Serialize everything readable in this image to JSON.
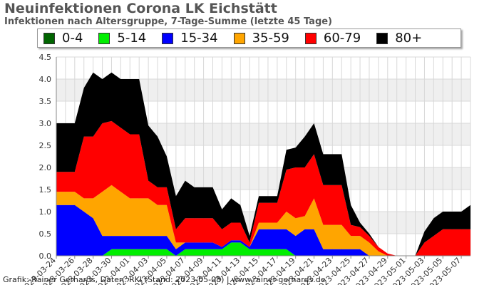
{
  "header": {
    "title": "Neuinfektionen Corona LK Eichstätt",
    "subtitle": "Infektionen nach Altersgruppe, 7-Tage-Summe (letzte 45 Tage)"
  },
  "footer": {
    "credit": "Grafik: Rainer Gerhards, Daten: RKI (Stand: 2023-05-08) | www.rainer-gerhards.de"
  },
  "chart_data": {
    "type": "area",
    "stacked": true,
    "grid": true,
    "legend_position": "top",
    "ylim": [
      0,
      4.5
    ],
    "y_ticks": [
      "0.0",
      "0.5",
      "1.0",
      "1.5",
      "2.0",
      "2.5",
      "3.0",
      "3.5",
      "4.0",
      "4.5"
    ],
    "x": [
      "2023-03-24",
      "2023-03-25",
      "2023-03-26",
      "2023-03-27",
      "2023-03-28",
      "2023-03-29",
      "2023-03-30",
      "2023-03-31",
      "2023-04-01",
      "2023-04-02",
      "2023-04-03",
      "2023-04-04",
      "2023-04-05",
      "2023-04-06",
      "2023-04-07",
      "2023-04-08",
      "2023-04-09",
      "2023-04-10",
      "2023-04-11",
      "2023-04-12",
      "2023-04-13",
      "2023-04-14",
      "2023-04-15",
      "2023-04-16",
      "2023-04-17",
      "2023-04-18",
      "2023-04-19",
      "2023-04-20",
      "2023-04-21",
      "2023-04-22",
      "2023-04-23",
      "2023-04-24",
      "2023-04-25",
      "2023-04-26",
      "2023-04-27",
      "2023-04-28",
      "2023-04-29",
      "2023-04-30",
      "2023-05-01",
      "2023-05-02",
      "2023-05-03",
      "2023-05-04",
      "2023-05-05",
      "2023-05-06",
      "2023-05-07",
      "2023-05-08"
    ],
    "x_tick_labels": [
      "2023-03-24",
      "2023-03-26",
      "2023-03-28",
      "2023-03-30",
      "2023-04-01",
      "2023-04-03",
      "2023-04-05",
      "2023-04-07",
      "2023-04-09",
      "2023-04-11",
      "2023-04-13",
      "2023-04-15",
      "2023-04-17",
      "2023-04-19",
      "2023-04-21",
      "2023-04-23",
      "2023-04-25",
      "2023-04-27",
      "2023-04-29",
      "2023-05-01",
      "2023-05-03",
      "2023-05-05",
      "2023-05-07"
    ],
    "series": [
      {
        "name": "0-4",
        "color": "#006400",
        "values": [
          0,
          0,
          0,
          0,
          0,
          0,
          0,
          0,
          0,
          0,
          0,
          0,
          0,
          0,
          0,
          0,
          0,
          0,
          0,
          0,
          0,
          0,
          0,
          0,
          0,
          0,
          0,
          0,
          0,
          0,
          0,
          0,
          0,
          0,
          0,
          0,
          0,
          0,
          0,
          0,
          0,
          0,
          0,
          0,
          0,
          0
        ]
      },
      {
        "name": "5-14",
        "color": "#00ee00",
        "values": [
          0,
          0,
          0,
          0,
          0,
          0,
          0.15,
          0.15,
          0.15,
          0.15,
          0.15,
          0.15,
          0.15,
          0,
          0.15,
          0.15,
          0.15,
          0.15,
          0.15,
          0.3,
          0.3,
          0.15,
          0.15,
          0.15,
          0.15,
          0.15,
          0,
          0,
          0,
          0,
          0,
          0,
          0,
          0,
          0,
          0,
          0,
          0,
          0,
          0,
          0,
          0,
          0,
          0,
          0,
          0
        ]
      },
      {
        "name": "15-34",
        "color": "#0000ff",
        "values": [
          1.15,
          1.15,
          1.15,
          1.0,
          0.85,
          0.45,
          0.3,
          0.3,
          0.3,
          0.3,
          0.3,
          0.3,
          0.3,
          0.15,
          0.15,
          0.15,
          0.15,
          0.15,
          0.05,
          0.05,
          0.05,
          0.05,
          0.45,
          0.45,
          0.45,
          0.45,
          0.45,
          0.6,
          0.6,
          0.15,
          0.15,
          0.15,
          0.15,
          0.15,
          0,
          0,
          0,
          0,
          0,
          0,
          0,
          0,
          0,
          0,
          0,
          0
        ]
      },
      {
        "name": "35-59",
        "color": "#ffa500",
        "values": [
          0.3,
          0.3,
          0.3,
          0.3,
          0.45,
          1.0,
          1.15,
          1.0,
          0.85,
          0.85,
          0.85,
          0.7,
          0.7,
          0.15,
          0,
          0,
          0,
          0,
          0,
          0,
          0,
          0,
          0.15,
          0.15,
          0.15,
          0.4,
          0.4,
          0.3,
          0.7,
          0.55,
          0.55,
          0.55,
          0.3,
          0.3,
          0.3,
          0.1,
          0,
          0,
          0,
          0,
          0,
          0,
          0,
          0,
          0,
          0
        ]
      },
      {
        "name": "60-79",
        "color": "#ff0000",
        "values": [
          0.45,
          0.45,
          0.45,
          1.4,
          1.4,
          1.55,
          1.45,
          1.45,
          1.45,
          1.45,
          0.4,
          0.4,
          0.4,
          0.3,
          0.55,
          0.55,
          0.55,
          0.55,
          0.4,
          0.4,
          0.4,
          0.1,
          0.45,
          0.45,
          0.45,
          0.95,
          1.15,
          1.1,
          1.0,
          0.9,
          0.9,
          0.9,
          0.25,
          0.2,
          0.15,
          0.1,
          0.05,
          0,
          0,
          0,
          0.3,
          0.45,
          0.6,
          0.6,
          0.6,
          0.6
        ]
      },
      {
        "name": "80+",
        "color": "#000000",
        "values": [
          1.1,
          1.1,
          1.1,
          1.1,
          1.45,
          1.0,
          1.1,
          1.1,
          1.25,
          1.25,
          1.25,
          1.15,
          0.7,
          0.75,
          0.85,
          0.7,
          0.7,
          0.7,
          0.45,
          0.55,
          0.4,
          0.15,
          0.15,
          0.15,
          0.15,
          0.45,
          0.45,
          0.7,
          0.7,
          0.7,
          0.7,
          0.7,
          0.45,
          0.1,
          0.05,
          0,
          0,
          0,
          0,
          0,
          0.25,
          0.4,
          0.4,
          0.4,
          0.4,
          0.55
        ]
      }
    ]
  }
}
